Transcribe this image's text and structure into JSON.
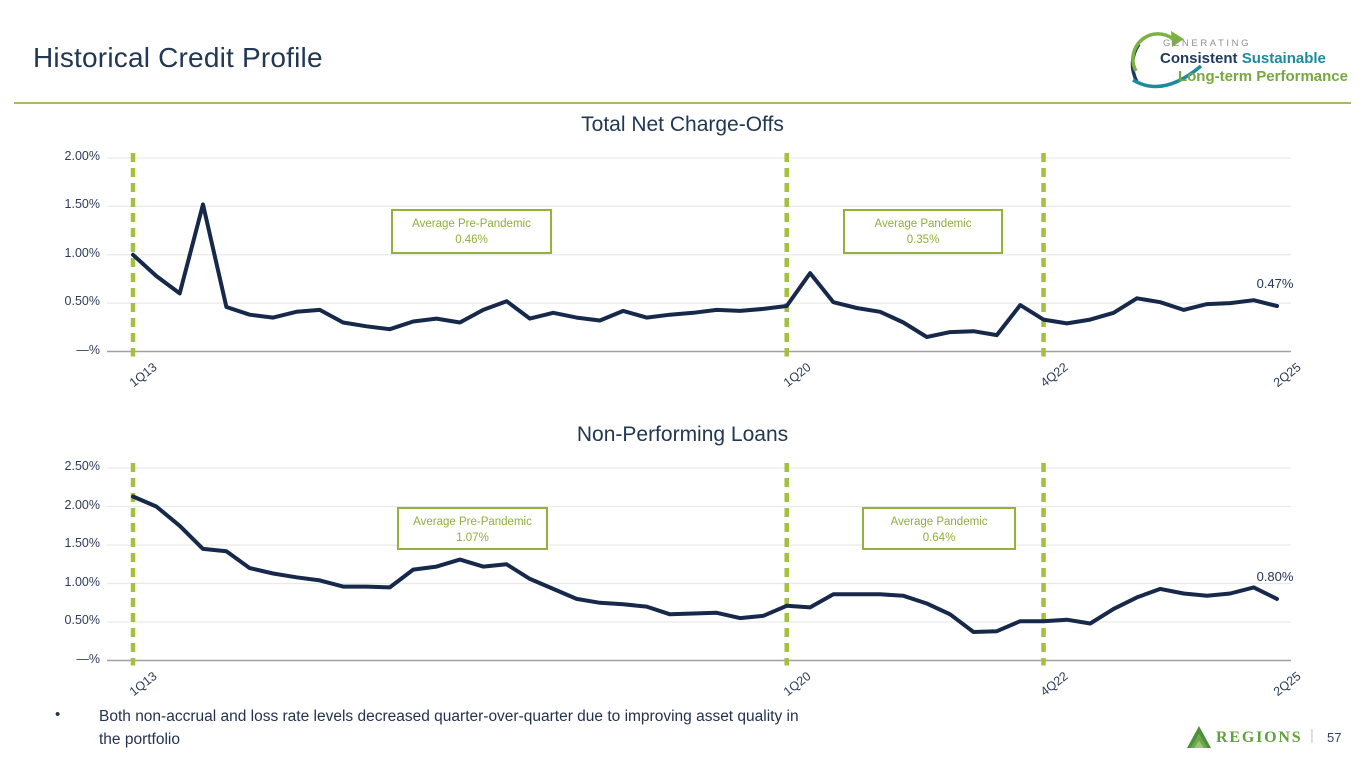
{
  "slide": {
    "title": "Historical Credit Profile",
    "bullet_text": "Both non-accrual and loss rate levels decreased quarter-over-quarter due to improving asset quality in the portfolio",
    "bullet_marker": "•",
    "page_number": "57",
    "brand_name": "Regions",
    "footer_divider": "|",
    "stamp": {
      "line1": "GENERATING",
      "line2_word1": "Consistent",
      "line2_word2": "Sustainable",
      "line3": "Long-term Performance"
    }
  },
  "colors": {
    "navy_line": "#16294a",
    "title_navy": "#223852",
    "lime_dash": "#a2c13c",
    "annotation_green": "#93b23c",
    "teal": "#1e8a9e",
    "brand_green": "#61a03c",
    "grid_gray": "#e9e9e9",
    "axis_gray": "#a0a0a0"
  },
  "chart_data": [
    {
      "type": "line",
      "title": "Total Net Charge-Offs",
      "x_description": "Quarterly, 1Q13 through 2Q25 (50 points)",
      "x_ticks": [
        {
          "index": 0,
          "label": "1Q13"
        },
        {
          "index": 28,
          "label": "1Q20"
        },
        {
          "index": 39,
          "label": "4Q22"
        },
        {
          "index": 49,
          "label": "2Q25"
        }
      ],
      "y_ticks": [
        "2.00%",
        "1.50%",
        "1.00%",
        "0.50%",
        "—%"
      ],
      "y_tick_values": [
        2.0,
        1.5,
        1.0,
        0.5,
        0
      ],
      "ylim": [
        0,
        2.0
      ],
      "grid": "horizontal",
      "vline_indices": [
        0,
        28,
        39
      ],
      "values": [
        1.0,
        0.78,
        0.6,
        1.52,
        0.46,
        0.38,
        0.35,
        0.41,
        0.43,
        0.3,
        0.26,
        0.23,
        0.31,
        0.34,
        0.3,
        0.43,
        0.52,
        0.34,
        0.4,
        0.35,
        0.32,
        0.42,
        0.35,
        0.38,
        0.4,
        0.43,
        0.42,
        0.44,
        0.47,
        0.81,
        0.51,
        0.45,
        0.41,
        0.3,
        0.15,
        0.2,
        0.21,
        0.17,
        0.48,
        0.33,
        0.29,
        0.33,
        0.4,
        0.55,
        0.51,
        0.43,
        0.49,
        0.5,
        0.53,
        0.47
      ],
      "end_label": "0.47%",
      "annotations": [
        {
          "line1": "Average Pre-Pandemic",
          "line2": "0.46%"
        },
        {
          "line1": "Average Pandemic",
          "line2": "0.35%"
        }
      ]
    },
    {
      "type": "line",
      "title": "Non-Performing Loans",
      "x_description": "Quarterly, 1Q13 through 2Q25 (50 points)",
      "x_ticks": [
        {
          "index": 0,
          "label": "1Q13"
        },
        {
          "index": 28,
          "label": "1Q20"
        },
        {
          "index": 39,
          "label": "4Q22"
        },
        {
          "index": 49,
          "label": "2Q25"
        }
      ],
      "y_ticks": [
        "2.50%",
        "2.00%",
        "1.50%",
        "1.00%",
        "0.50%",
        "—%"
      ],
      "y_tick_values": [
        2.5,
        2.0,
        1.5,
        1.0,
        0.5,
        0
      ],
      "ylim": [
        0,
        2.5
      ],
      "grid": "horizontal",
      "vline_indices": [
        0,
        28,
        39
      ],
      "values": [
        2.13,
        2.0,
        1.75,
        1.45,
        1.42,
        1.2,
        1.13,
        1.08,
        1.04,
        0.96,
        0.96,
        0.95,
        1.18,
        1.22,
        1.31,
        1.22,
        1.25,
        1.06,
        0.93,
        0.8,
        0.75,
        0.73,
        0.7,
        0.6,
        0.61,
        0.62,
        0.55,
        0.58,
        0.71,
        0.69,
        0.86,
        0.86,
        0.86,
        0.84,
        0.74,
        0.6,
        0.37,
        0.38,
        0.51,
        0.51,
        0.53,
        0.48,
        0.67,
        0.82,
        0.93,
        0.87,
        0.84,
        0.87,
        0.95,
        0.8
      ],
      "end_label": "0.80%",
      "annotations": [
        {
          "line1": "Average Pre-Pandemic",
          "line2": "1.07%"
        },
        {
          "line1": "Average Pandemic",
          "line2": "0.64%"
        }
      ]
    }
  ]
}
